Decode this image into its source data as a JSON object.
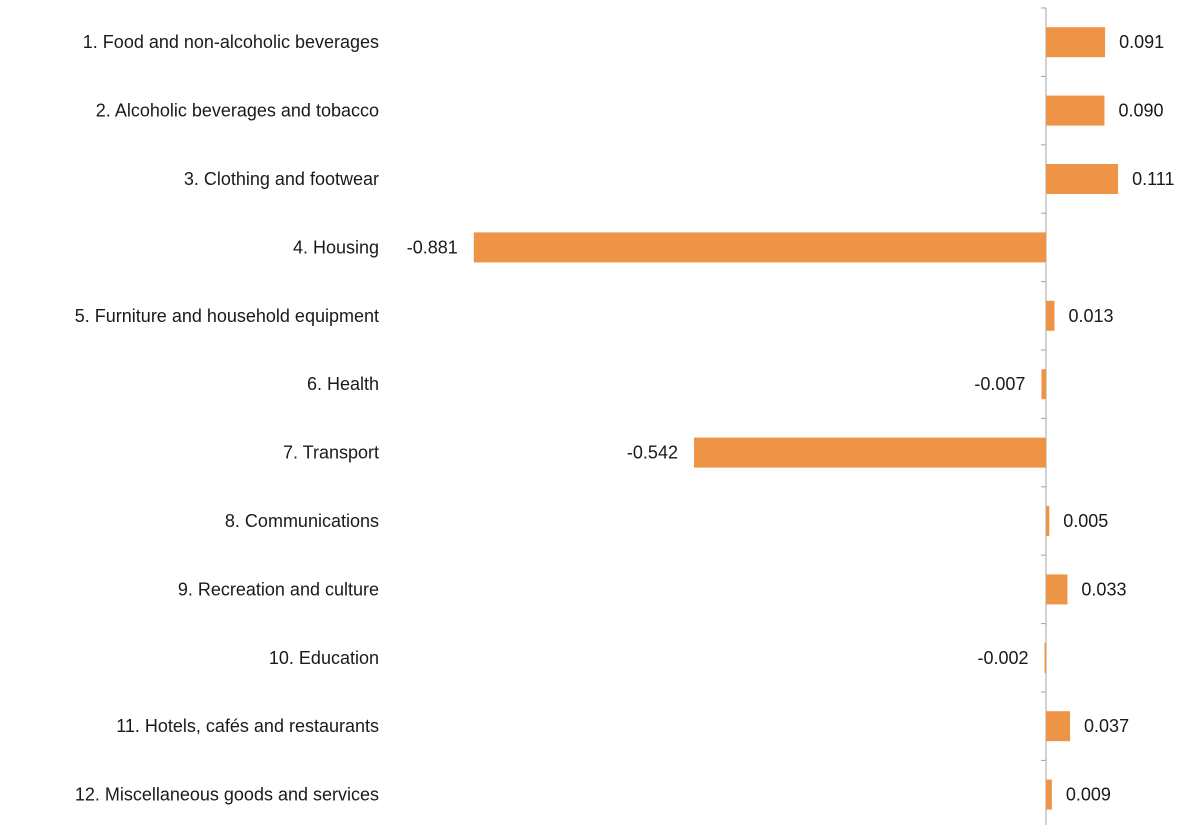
{
  "chart_data": {
    "type": "bar",
    "orientation": "horizontal",
    "title": "",
    "xlabel": "",
    "ylabel": "",
    "categories": [
      "1. Food and non-alcoholic beverages",
      "2. Alcoholic beverages and tobacco",
      "3. Clothing and footwear",
      "4. Housing",
      "5. Furniture and household equipment",
      "6. Health",
      "7. Transport",
      "8. Communications",
      "9. Recreation and culture",
      "10. Education",
      "11. Hotels, cafés and restaurants",
      "12. Miscellaneous goods and services"
    ],
    "values": [
      0.091,
      0.09,
      0.111,
      -0.881,
      0.013,
      -0.007,
      -0.542,
      0.005,
      0.033,
      -0.002,
      0.037,
      0.009
    ],
    "value_labels": [
      "0.091",
      "0.090",
      "0.111",
      "-0.881",
      "0.013",
      "-0.007",
      "-0.542",
      "0.005",
      "0.033",
      "-0.002",
      "0.037",
      "0.009"
    ],
    "bar_color": "#ED9447",
    "axis_color": "#A6A6A6",
    "grid": false,
    "legend": "none"
  }
}
